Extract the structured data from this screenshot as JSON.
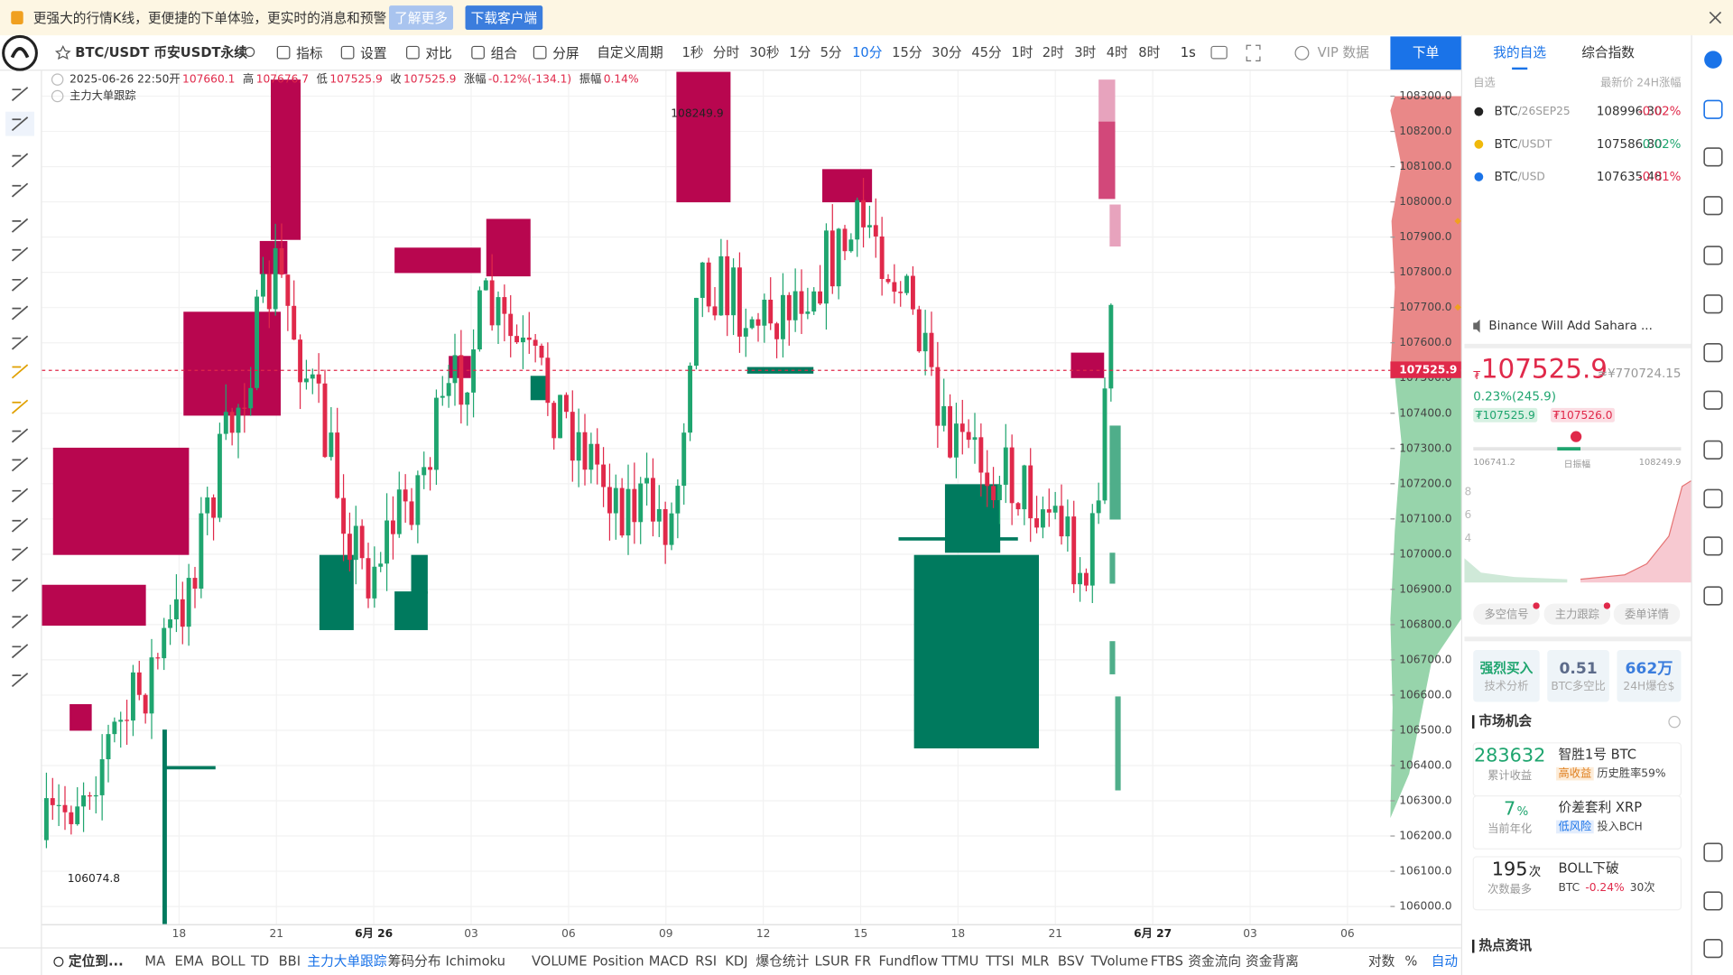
{
  "banner": {
    "text": "更强大的行情K线，更便捷的下单体验，更实时的消息和预警",
    "learn_more": "了解更多",
    "download": "下载客户端"
  },
  "toolbar": {
    "symbol": "BTC/USDT 币安USDT永续",
    "tools": [
      "指标",
      "设置",
      "对比",
      "组合",
      "分屏"
    ],
    "custom_period": "自定义周期",
    "periods": [
      "1秒",
      "分时",
      "30秒",
      "1分",
      "5分",
      "10分",
      "15分",
      "30分",
      "45分",
      "1时",
      "2时",
      "3时",
      "4时",
      "8时"
    ],
    "active_period": "10分",
    "chart_interval": "1s",
    "vip": "VIP 数据",
    "order": "下单"
  },
  "ohlc": {
    "date": "2025-06-26 22:50",
    "fields": [
      {
        "label": "开",
        "value": "107660.1"
      },
      {
        "label": "高",
        "value": "107676.7"
      },
      {
        "label": "低",
        "value": "107525.9"
      },
      {
        "label": "收",
        "value": "107525.9"
      },
      {
        "label": "涨幅",
        "value": "-0.12%(-134.1)"
      },
      {
        "label": "振幅",
        "value": "0.14%"
      }
    ]
  },
  "indicator_label": "主力大单跟踪",
  "price_axis": {
    "ticks": [
      "108300.0",
      "108200.0",
      "108100.0",
      "108000.0",
      "107900.0",
      "107800.0",
      "107700.0",
      "107600.0",
      "107500.0",
      "107400.0",
      "107300.0",
      "107200.0",
      "107100.0",
      "107000.0",
      "106900.0",
      "106800.0",
      "106700.0",
      "106600.0",
      "106500.0",
      "106400.0",
      "106300.0",
      "106200.0",
      "106100.0",
      "106000.0"
    ],
    "current": "107525.9"
  },
  "annotations": {
    "high": "108249.9",
    "low": "106074.8"
  },
  "time_axis": [
    "18",
    "21",
    "6月 26",
    "03",
    "06",
    "09",
    "12",
    "15",
    "18",
    "21",
    "6月 27",
    "03",
    "06"
  ],
  "bottom_bar": {
    "locate": "定位到...",
    "indicators": [
      "MA",
      "EMA",
      "BOLL",
      "TD",
      "BBI",
      "主力大单跟踪",
      "筹码分布",
      "Ichimoku",
      "VOLUME",
      "Position",
      "MACD",
      "RSI",
      "KDJ",
      "爆仓统计",
      "LSUR",
      "FR",
      "Fundflow",
      "TTMU",
      "TTSI",
      "MLR",
      "BSV",
      "TVolume",
      "FTBS",
      "资金流向",
      "资金背离"
    ],
    "active_indicator": "主力大单跟踪",
    "options": [
      "对数",
      "%",
      "自动"
    ]
  },
  "sidebar": {
    "tabs": [
      "我的自选",
      "综合指数"
    ],
    "columns": [
      "自选",
      "最新价",
      "24H涨幅"
    ],
    "watchlist": [
      {
        "base": "BTC",
        "quote": "/26SEP25",
        "price": "108996.30",
        "change": "-0.02%"
      },
      {
        "base": "BTC",
        "quote": "/USDT",
        "price": "107586.80",
        "change": "0.02%"
      },
      {
        "base": "BTC",
        "quote": "/USD",
        "price": "107635.48",
        "change": "-0.01%"
      }
    ],
    "news": "Binance Will Add Sahara ...",
    "ticker": {
      "currency": "₮",
      "price": "107525.9",
      "cny": "≈¥770724.15",
      "change": "0.23%(245.9)",
      "bid": "₮107525.9",
      "ask": "₮107526.0",
      "day_low": "106741.2",
      "range_label": "日振幅",
      "day_high": "108249.9",
      "axis": [
        "8",
        "6",
        "4"
      ]
    },
    "signals": [
      "多空信号",
      "主力跟踪",
      "委单详情"
    ],
    "stats": [
      {
        "value": "强烈买入",
        "label": "技术分析"
      },
      {
        "value": "0.51",
        "label": "BTC多空比"
      },
      {
        "value": "662万",
        "label": "24H爆仓$"
      }
    ],
    "opportunities_title": "市场机会",
    "opportunities": [
      {
        "value": "283632",
        "label": "累计收益",
        "name": "智胜1号 BTC",
        "tag": "高收益",
        "detail": "历史胜率59%"
      },
      {
        "value": "7",
        "unit": "%",
        "label": "当前年化",
        "name": "价差套利 XRP",
        "tag": "低风险",
        "detail": "投入BCH"
      },
      {
        "value": "195",
        "unit": "次",
        "label": "次数最多",
        "name": "BOLL下破",
        "tag": "BTC",
        "detail": "-0.24%",
        "extra": "30次"
      }
    ],
    "hot_news_title": "热点资讯"
  }
}
